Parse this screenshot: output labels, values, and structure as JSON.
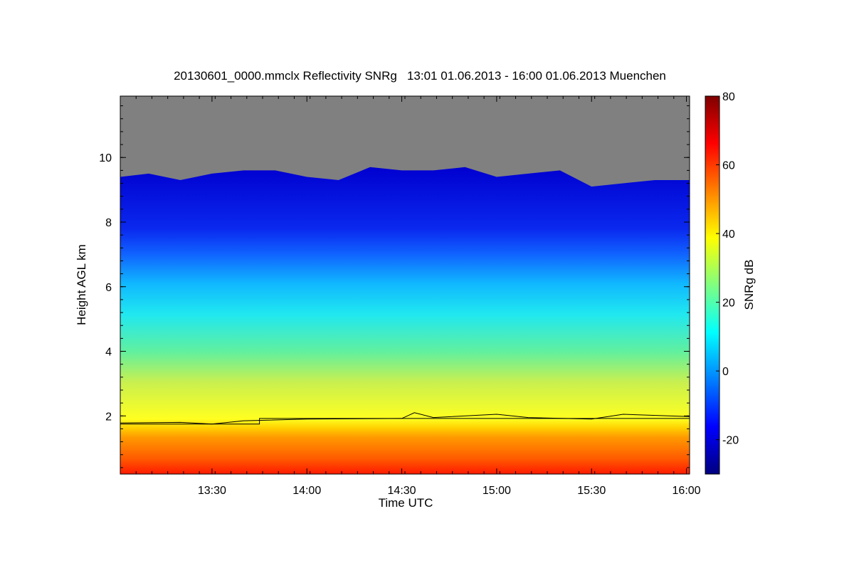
{
  "chart_data": {
    "type": "heatmap",
    "title": "20130601_0000.mmclx Reflectivity SNRg   13:01 01.06.2013 - 16:00 01.06.2013 Muenchen",
    "xlabel": "Time UTC",
    "ylabel": "Height AGL km",
    "colorbar_label": "SNRg dB",
    "x_range": [
      "13:01",
      "16:01"
    ],
    "x_ticks": [
      "13:30",
      "14:00",
      "14:30",
      "15:00",
      "15:30",
      "16:00"
    ],
    "y_range": [
      0.2,
      11.9
    ],
    "y_ticks": [
      2,
      4,
      6,
      8,
      10
    ],
    "colorbar_range": [
      -30,
      80
    ],
    "colorbar_ticks": [
      -20,
      0,
      20,
      40,
      60,
      80
    ],
    "no_signal_color": "#808080",
    "colormap": [
      "#00007f",
      "#0000ff",
      "#0080ff",
      "#00ffff",
      "#80ff80",
      "#ffff00",
      "#ff8000",
      "#ff0000",
      "#7f0000"
    ],
    "echo_top_km": [
      {
        "t": "13:01",
        "h": 9.4
      },
      {
        "t": "13:10",
        "h": 9.5
      },
      {
        "t": "13:20",
        "h": 9.3
      },
      {
        "t": "13:30",
        "h": 9.5
      },
      {
        "t": "13:40",
        "h": 9.6
      },
      {
        "t": "13:50",
        "h": 9.6
      },
      {
        "t": "14:00",
        "h": 9.4
      },
      {
        "t": "14:10",
        "h": 9.3
      },
      {
        "t": "14:20",
        "h": 9.7
      },
      {
        "t": "14:30",
        "h": 9.6
      },
      {
        "t": "14:40",
        "h": 9.6
      },
      {
        "t": "14:50",
        "h": 9.7
      },
      {
        "t": "15:00",
        "h": 9.4
      },
      {
        "t": "15:10",
        "h": 9.5
      },
      {
        "t": "15:20",
        "h": 9.6
      },
      {
        "t": "15:30",
        "h": 9.1
      },
      {
        "t": "15:40",
        "h": 9.2
      },
      {
        "t": "15:50",
        "h": 9.3
      },
      {
        "t": "16:01",
        "h": 9.3
      }
    ],
    "melting_layer_km": [
      {
        "t": "13:01",
        "h": 1.78
      },
      {
        "t": "13:20",
        "h": 1.8
      },
      {
        "t": "13:30",
        "h": 1.75
      },
      {
        "t": "13:40",
        "h": 1.85
      },
      {
        "t": "14:00",
        "h": 1.9
      },
      {
        "t": "14:30",
        "h": 1.92
      },
      {
        "t": "14:34",
        "h": 2.1
      },
      {
        "t": "14:40",
        "h": 1.95
      },
      {
        "t": "15:00",
        "h": 2.05
      },
      {
        "t": "15:10",
        "h": 1.95
      },
      {
        "t": "15:30",
        "h": 1.9
      },
      {
        "t": "15:40",
        "h": 2.05
      },
      {
        "t": "16:01",
        "h": 1.98
      }
    ],
    "reference_line_km": [
      {
        "t": "13:01",
        "h": 1.75
      },
      {
        "t": "13:45",
        "h": 1.75
      },
      {
        "t": "13:45",
        "h": 1.92
      },
      {
        "t": "16:01",
        "h": 1.92
      }
    ],
    "grid": false
  }
}
